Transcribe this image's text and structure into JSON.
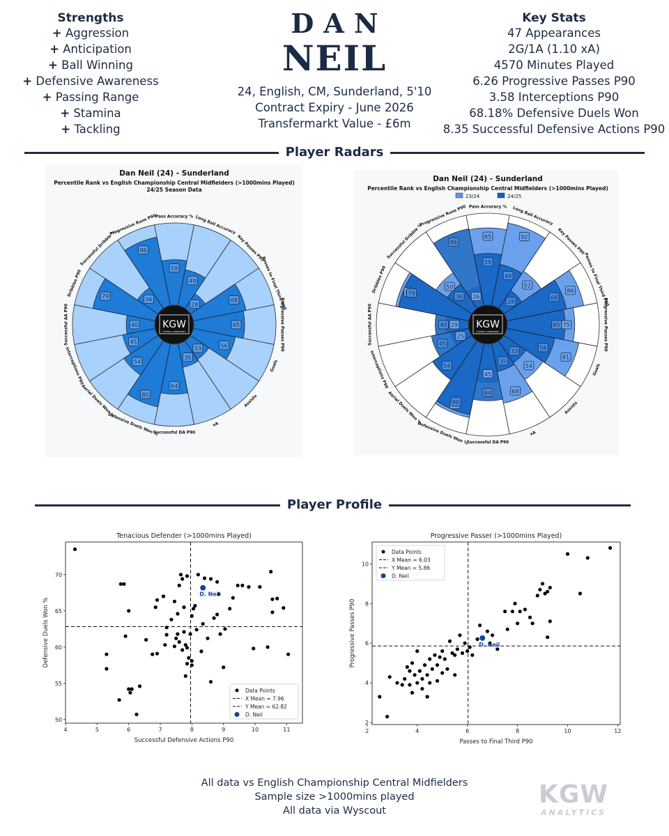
{
  "strengths": {
    "title": "Strengths",
    "items": [
      "Aggression",
      "Anticipation",
      "Ball Winning",
      "Defensive Awareness",
      "Passing Range",
      "Stamina",
      "Tackling"
    ]
  },
  "player": {
    "first_name": "DAN",
    "last_name": "NEIL",
    "bio": "24, English, CM, Sunderland, 5'10",
    "contract": "Contract Expiry - June 2026",
    "value": "Transfermarkt Value - £6m"
  },
  "key_stats": {
    "title": "Key Stats",
    "items": [
      "47 Appearances",
      "2G/1A (1.10 xA)",
      "4570 Minutes Played",
      "6.26 Progressive Passes P90",
      "3.58 Interceptions P90",
      "68.18% Defensive Duels Won",
      "8.35 Successful Defensive Actions P90"
    ]
  },
  "sections": {
    "radars": "Player Radars",
    "profile": "Player Profile"
  },
  "logo": {
    "radar_center": "KGW",
    "radar_center_sub": "FOOTBALL CONSULTANCY",
    "brand": "KGW",
    "brand_sub": "ANALYTICS"
  },
  "footer": {
    "line1": "All data vs English Championship Central Midfielders",
    "line2": "Sample size >1000mins played",
    "line3": "All data via Wyscout"
  },
  "colors": {
    "navy": "#1c2b45",
    "light_blue": "#a8d1fb",
    "mid_blue": "#1e7bd6",
    "dark_blue": "#0d5fbf",
    "prev_blue": "#5b96ea"
  },
  "chart_data": [
    {
      "type": "radar",
      "title": "Dan Neil (24) - Sunderland",
      "subtitle": "Percentile Rank vs English Championship Central Midfielders (>1000mins Played)",
      "season_label": "24/25 Season Data",
      "categories": [
        "Pass Accuracy %",
        "Long Ball Accuracy",
        "Key Passes P90",
        "Passes to Final Third P90",
        "Progressive Passes P90",
        "Goals",
        "Assists",
        "xA",
        "Successful DA P90",
        "Defensive Duels Won %",
        "Aerial Duels Won %",
        "Interceptions P90",
        "Successful AA P90",
        "Dribbles P90",
        "Successful Dribble %",
        "Progressive Runs P90"
      ],
      "values": [
        59,
        49,
        28,
        68,
        65,
        56,
        33,
        35,
        64,
        80,
        54,
        45,
        40,
        79,
        36,
        86
      ],
      "range": [
        0,
        100
      ]
    },
    {
      "type": "radar",
      "title": "Dan Neil (24) - Sunderland",
      "subtitle": "Percentile Rank vs English Championship Central Midfielders (>1000mins Played)",
      "categories": [
        "Pass Accuracy %",
        "Long Ball Accuracy",
        "Key Passes P90",
        "Passes to Final Third P90",
        "Progressive Passes P90",
        "Goals",
        "Assists",
        "xA",
        "Successful DA P90",
        "Defensive Duels Won %",
        "Aerial Duels Won %",
        "Interceptions P90",
        "Successful AA P90",
        "Dribbles P90",
        "Successful Dribble %",
        "Progressive Runs P90"
      ],
      "series": [
        {
          "name": "23/24",
          "values": [
            85,
            92,
            52,
            86,
            75,
            81,
            54,
            68,
            45,
            83,
            54,
            25,
            29,
            82,
            50,
            26
          ]
        },
        {
          "name": "24/25",
          "values": [
            59,
            49,
            28,
            68,
            65,
            56,
            33,
            35,
            64,
            80,
            54,
            45,
            40,
            79,
            36,
            86
          ]
        }
      ],
      "range": [
        0,
        100
      ]
    },
    {
      "type": "scatter",
      "title": "Tenacious Defender (>1000mins Played)",
      "xlabel": "Successful Defensive Actions P90",
      "ylabel": "Defensive Duels Won %",
      "xlim": [
        4,
        11.5
      ],
      "ylim": [
        49.5,
        74.5
      ],
      "xticks": [
        4,
        5,
        6,
        7,
        8,
        9,
        10,
        11
      ],
      "yticks": [
        50,
        55,
        60,
        65,
        70
      ],
      "x_mean": 7.96,
      "y_mean": 62.82,
      "legend": [
        "Data Points",
        "X Mean = 7.96",
        "Y Mean = 62.82",
        "D. Neil"
      ],
      "legend_position": "bottom-right",
      "highlight": {
        "label": "D. Neil",
        "x": 8.35,
        "y": 68.18
      },
      "points": [
        [
          4.3,
          73.5
        ],
        [
          5.3,
          57
        ],
        [
          5.3,
          59
        ],
        [
          5.7,
          52.7
        ],
        [
          5.75,
          68.7
        ],
        [
          5.85,
          68.7
        ],
        [
          5.9,
          61.5
        ],
        [
          6.0,
          65
        ],
        [
          6.0,
          54.2
        ],
        [
          6.05,
          53.7
        ],
        [
          6.1,
          54.2
        ],
        [
          6.25,
          50.7
        ],
        [
          6.35,
          54.6
        ],
        [
          6.55,
          61
        ],
        [
          6.75,
          59
        ],
        [
          6.85,
          65.5
        ],
        [
          6.9,
          66.5
        ],
        [
          6.9,
          59.1
        ],
        [
          7.1,
          67
        ],
        [
          7.15,
          60.3
        ],
        [
          7.2,
          61.7
        ],
        [
          7.2,
          62.7
        ],
        [
          7.35,
          63.8
        ],
        [
          7.45,
          66.3
        ],
        [
          7.45,
          60.1
        ],
        [
          7.5,
          61.2
        ],
        [
          7.55,
          61.8
        ],
        [
          7.55,
          64.6
        ],
        [
          7.6,
          68.5
        ],
        [
          7.6,
          60.7
        ],
        [
          7.65,
          70
        ],
        [
          7.7,
          69.4
        ],
        [
          7.7,
          59.6
        ],
        [
          7.75,
          65.5
        ],
        [
          7.75,
          62.1
        ],
        [
          7.8,
          60.3
        ],
        [
          7.8,
          56
        ],
        [
          7.85,
          59.9
        ],
        [
          7.85,
          69.8
        ],
        [
          7.85,
          57.7
        ],
        [
          7.9,
          58.5
        ],
        [
          7.95,
          61.8
        ],
        [
          8.0,
          58.1
        ],
        [
          8.0,
          57.5
        ],
        [
          8.0,
          64.3
        ],
        [
          8.05,
          65.3
        ],
        [
          8.1,
          65.7
        ],
        [
          8.15,
          62.4
        ],
        [
          8.2,
          70
        ],
        [
          8.3,
          59.4
        ],
        [
          8.35,
          63.2
        ],
        [
          8.4,
          69.5
        ],
        [
          8.5,
          61.2
        ],
        [
          8.6,
          69.4
        ],
        [
          8.6,
          55.2
        ],
        [
          8.7,
          64
        ],
        [
          8.8,
          64.5
        ],
        [
          8.8,
          69
        ],
        [
          8.85,
          67.3
        ],
        [
          8.9,
          61.8
        ],
        [
          9.0,
          57.2
        ],
        [
          9.05,
          62.5
        ],
        [
          9.2,
          65.3
        ],
        [
          9.3,
          66.8
        ],
        [
          9.45,
          68.5
        ],
        [
          9.6,
          68.5
        ],
        [
          9.8,
          68.3
        ],
        [
          9.95,
          59.8
        ],
        [
          10.15,
          68.3
        ],
        [
          10.4,
          60
        ],
        [
          10.5,
          70.4
        ],
        [
          10.55,
          64.8
        ],
        [
          10.55,
          66.6
        ],
        [
          10.7,
          66.7
        ],
        [
          10.9,
          65.4
        ],
        [
          11.05,
          59
        ]
      ]
    },
    {
      "type": "scatter",
      "title": "Progressive Passer (>1000mins Played)",
      "xlabel": "Passes to Final Third P90",
      "ylabel": "Progressive Passes P90",
      "xlim": [
        2.2,
        12.1
      ],
      "ylim": [
        1.9,
        11.1
      ],
      "xticks": [
        2,
        4,
        6,
        8,
        10,
        12
      ],
      "yticks": [
        2,
        4,
        6,
        8,
        10
      ],
      "x_mean": 6.03,
      "y_mean": 5.86,
      "legend": [
        "Data Points",
        "X Mean = 6.03",
        "Y Mean = 5.86",
        "D. Neil"
      ],
      "legend_position": "top-left",
      "highlight": {
        "label": "D. Neil",
        "x": 6.6,
        "y": 6.26
      },
      "points": [
        [
          2.5,
          3.3
        ],
        [
          2.8,
          2.3
        ],
        [
          2.9,
          4.3
        ],
        [
          3.2,
          4.0
        ],
        [
          3.4,
          3.9
        ],
        [
          3.5,
          4.2
        ],
        [
          3.6,
          4.8
        ],
        [
          3.7,
          3.9
        ],
        [
          3.7,
          4.6
        ],
        [
          3.8,
          5.0
        ],
        [
          3.8,
          3.5
        ],
        [
          3.9,
          4.4
        ],
        [
          4.0,
          4.0
        ],
        [
          4.0,
          5.6
        ],
        [
          4.1,
          4.6
        ],
        [
          4.2,
          4.2
        ],
        [
          4.2,
          3.7
        ],
        [
          4.3,
          4.9
        ],
        [
          4.4,
          3.3
        ],
        [
          4.4,
          4.4
        ],
        [
          4.5,
          5.2
        ],
        [
          4.5,
          4.0
        ],
        [
          4.6,
          4.7
        ],
        [
          4.7,
          5.4
        ],
        [
          4.8,
          4.1
        ],
        [
          4.8,
          4.9
        ],
        [
          4.9,
          5.3
        ],
        [
          5.0,
          4.5
        ],
        [
          5.0,
          5.6
        ],
        [
          5.1,
          5.2
        ],
        [
          5.2,
          4.7
        ],
        [
          5.3,
          6.1
        ],
        [
          5.4,
          5.5
        ],
        [
          5.5,
          5.4
        ],
        [
          5.5,
          4.4
        ],
        [
          5.6,
          5.7
        ],
        [
          5.7,
          6.4
        ],
        [
          5.8,
          5.5
        ],
        [
          5.9,
          6.0
        ],
        [
          6.0,
          5.6
        ],
        [
          6.1,
          5.8
        ],
        [
          6.2,
          5.4
        ],
        [
          6.4,
          6.2
        ],
        [
          6.5,
          6.9
        ],
        [
          6.8,
          6.6
        ],
        [
          6.9,
          6.0
        ],
        [
          7.0,
          6.4
        ],
        [
          7.2,
          5.7
        ],
        [
          7.5,
          7.6
        ],
        [
          7.6,
          6.7
        ],
        [
          7.8,
          7.6
        ],
        [
          7.9,
          8.0
        ],
        [
          8.0,
          7.0
        ],
        [
          8.1,
          7.6
        ],
        [
          8.3,
          7.7
        ],
        [
          8.5,
          7.3
        ],
        [
          8.6,
          7.0
        ],
        [
          8.8,
          8.4
        ],
        [
          8.9,
          8.7
        ],
        [
          9.0,
          9.0
        ],
        [
          9.1,
          8.5
        ],
        [
          9.2,
          8.6
        ],
        [
          9.2,
          6.3
        ],
        [
          9.3,
          7.1
        ],
        [
          9.3,
          8.8
        ],
        [
          10.0,
          10.5
        ],
        [
          10.5,
          8.5
        ],
        [
          10.8,
          10.3
        ],
        [
          11.7,
          10.8
        ]
      ]
    }
  ]
}
